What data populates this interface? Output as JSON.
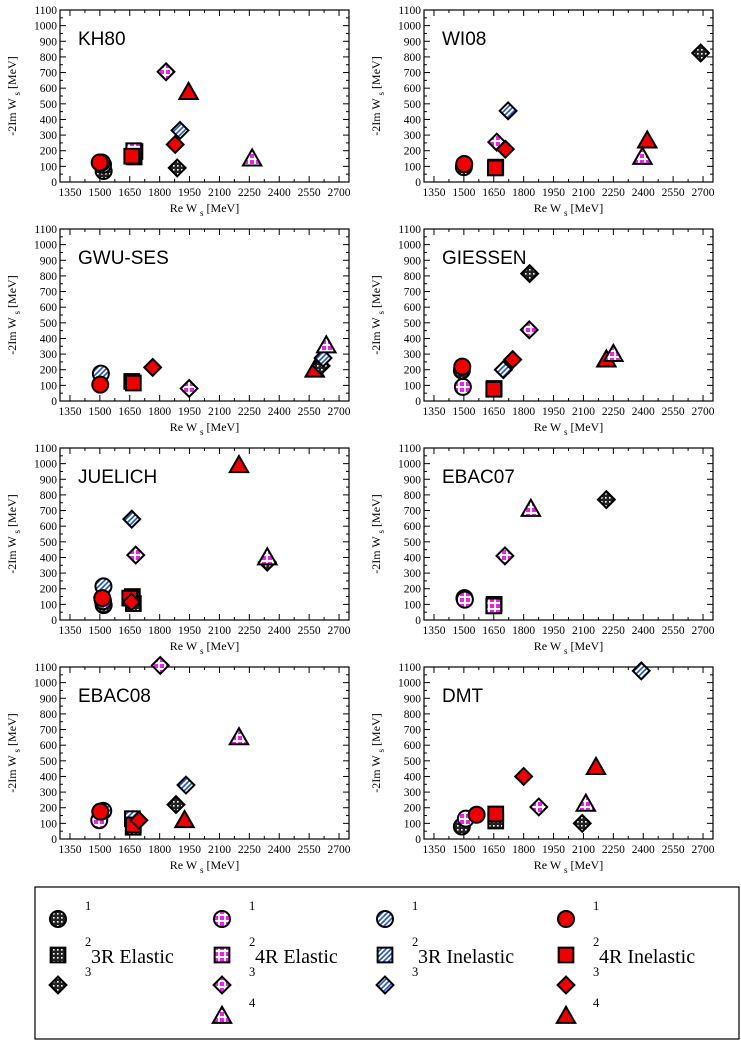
{
  "axes": {
    "xlabel_prefix": "Re W",
    "xlabel_sub": "s",
    "xlabel_suffix": " [MeV]",
    "ylabel_prefix": "-2Im W",
    "ylabel_sub": "s",
    "ylabel_suffix": " [MeV]",
    "xlim": [
      1300,
      2750
    ],
    "ylim": [
      0,
      1100
    ],
    "xticks": [
      1350,
      1500,
      1650,
      1800,
      1950,
      2100,
      2250,
      2400,
      2550,
      2700
    ],
    "yticks": [
      0,
      100,
      200,
      300,
      400,
      500,
      600,
      700,
      800,
      900,
      1000,
      1100
    ]
  },
  "legend": {
    "groups": [
      {
        "name": "3R Elastic",
        "style": "black",
        "numbers": [
          "1",
          "2",
          "3"
        ]
      },
      {
        "name": "4R Elastic",
        "style": "magenta",
        "numbers": [
          "1",
          "2",
          "3",
          "4"
        ]
      },
      {
        "name": "3R Inelastic",
        "style": "blue",
        "numbers": [
          "1",
          "2",
          "3"
        ]
      },
      {
        "name": "4R Inelastic",
        "style": "red",
        "numbers": [
          "1",
          "2",
          "3",
          "4"
        ]
      }
    ]
  },
  "colors": {
    "black": "#222222",
    "magenta": "#ee22ee",
    "blue": "#1e4fd8",
    "red": "#ee0000",
    "edge": "#000000"
  },
  "chart_data": [
    {
      "type": "scatter",
      "title": "KH80",
      "points": [
        {
          "s": "black",
          "m": "circle",
          "x": 1519,
          "y": 70
        },
        {
          "s": "blue",
          "m": "circle",
          "x": 1516,
          "y": 110
        },
        {
          "s": "magenta",
          "m": "circle",
          "x": 1510,
          "y": 125
        },
        {
          "s": "red",
          "m": "circle",
          "x": 1499,
          "y": 125
        },
        {
          "s": "black",
          "m": "square",
          "x": 1672,
          "y": 160
        },
        {
          "s": "blue",
          "m": "square",
          "x": 1676,
          "y": 195
        },
        {
          "s": "magenta",
          "m": "square",
          "x": 1670,
          "y": 200
        },
        {
          "s": "red",
          "m": "square",
          "x": 1660,
          "y": 165
        },
        {
          "s": "magenta",
          "m": "diamond",
          "x": 1832,
          "y": 705
        },
        {
          "s": "red",
          "m": "diamond",
          "x": 1878,
          "y": 240
        },
        {
          "s": "blue",
          "m": "diamond",
          "x": 1902,
          "y": 330
        },
        {
          "s": "black",
          "m": "diamond",
          "x": 1888,
          "y": 90
        },
        {
          "s": "red",
          "m": "triangle",
          "x": 1945,
          "y": 575
        },
        {
          "s": "magenta",
          "m": "triangle",
          "x": 2264,
          "y": 150
        }
      ]
    },
    {
      "type": "scatter",
      "title": "WI08",
      "points": [
        {
          "s": "black",
          "m": "circle",
          "x": 1500,
          "y": 95
        },
        {
          "s": "red",
          "m": "circle",
          "x": 1502,
          "y": 115
        },
        {
          "s": "black",
          "m": "square",
          "x": 1660,
          "y": 95
        },
        {
          "s": "red",
          "m": "square",
          "x": 1658,
          "y": 90
        },
        {
          "s": "magenta",
          "m": "diamond",
          "x": 1665,
          "y": 255
        },
        {
          "s": "red",
          "m": "diamond",
          "x": 1708,
          "y": 210
        },
        {
          "s": "blue",
          "m": "diamond",
          "x": 1722,
          "y": 455
        },
        {
          "s": "black",
          "m": "diamond",
          "x": 2688,
          "y": 825
        },
        {
          "s": "red",
          "m": "triangle",
          "x": 2420,
          "y": 265
        },
        {
          "s": "magenta",
          "m": "triangle",
          "x": 2396,
          "y": 160
        }
      ]
    },
    {
      "type": "scatter",
      "title": "GWU-SES",
      "points": [
        {
          "s": "blue",
          "m": "circle",
          "x": 1505,
          "y": 175
        },
        {
          "s": "red",
          "m": "circle",
          "x": 1502,
          "y": 105
        },
        {
          "s": "blue",
          "m": "square",
          "x": 1660,
          "y": 125
        },
        {
          "s": "red",
          "m": "square",
          "x": 1668,
          "y": 115
        },
        {
          "s": "red",
          "m": "diamond",
          "x": 1765,
          "y": 215
        },
        {
          "s": "magenta",
          "m": "diamond",
          "x": 1948,
          "y": 80
        },
        {
          "s": "red",
          "m": "triangle",
          "x": 2578,
          "y": 200
        },
        {
          "s": "black",
          "m": "diamond",
          "x": 2610,
          "y": 225
        },
        {
          "s": "blue",
          "m": "diamond",
          "x": 2620,
          "y": 275
        },
        {
          "s": "magenta",
          "m": "triangle",
          "x": 2636,
          "y": 355
        }
      ]
    },
    {
      "type": "scatter",
      "title": "GIESSEN",
      "points": [
        {
          "s": "black",
          "m": "circle",
          "x": 1490,
          "y": 195
        },
        {
          "s": "magenta",
          "m": "circle",
          "x": 1495,
          "y": 90
        },
        {
          "s": "red",
          "m": "circle",
          "x": 1492,
          "y": 220
        },
        {
          "s": "black",
          "m": "square",
          "x": 1652,
          "y": 80
        },
        {
          "s": "red",
          "m": "square",
          "x": 1650,
          "y": 75
        },
        {
          "s": "blue",
          "m": "diamond",
          "x": 1698,
          "y": 200
        },
        {
          "s": "red",
          "m": "diamond",
          "x": 1745,
          "y": 265
        },
        {
          "s": "magenta",
          "m": "diamond",
          "x": 1828,
          "y": 455
        },
        {
          "s": "black",
          "m": "diamond",
          "x": 1830,
          "y": 815
        },
        {
          "s": "red",
          "m": "triangle",
          "x": 2215,
          "y": 265
        },
        {
          "s": "magenta",
          "m": "triangle",
          "x": 2250,
          "y": 300
        }
      ]
    },
    {
      "type": "scatter",
      "title": "JUELICH",
      "points": [
        {
          "s": "black",
          "m": "circle",
          "x": 1519,
          "y": 95
        },
        {
          "s": "magenta",
          "m": "circle",
          "x": 1516,
          "y": 120
        },
        {
          "s": "blue",
          "m": "circle",
          "x": 1518,
          "y": 215
        },
        {
          "s": "red",
          "m": "circle",
          "x": 1512,
          "y": 140
        },
        {
          "s": "black",
          "m": "square",
          "x": 1668,
          "y": 105
        },
        {
          "s": "magenta",
          "m": "square",
          "x": 1663,
          "y": 150
        },
        {
          "s": "blue",
          "m": "square",
          "x": 1660,
          "y": 140
        },
        {
          "s": "red",
          "m": "square",
          "x": 1650,
          "y": 140
        },
        {
          "s": "red",
          "m": "diamond",
          "x": 1658,
          "y": 115
        },
        {
          "s": "blue",
          "m": "diamond",
          "x": 1660,
          "y": 645
        },
        {
          "s": "magenta",
          "m": "diamond",
          "x": 1680,
          "y": 415
        },
        {
          "s": "red",
          "m": "triangle",
          "x": 2198,
          "y": 990
        },
        {
          "s": "black",
          "m": "diamond",
          "x": 2340,
          "y": 370
        },
        {
          "s": "magenta",
          "m": "triangle",
          "x": 2340,
          "y": 400
        }
      ]
    },
    {
      "type": "scatter",
      "title": "EBAC07",
      "points": [
        {
          "s": "blue",
          "m": "circle",
          "x": 1503,
          "y": 140
        },
        {
          "s": "magenta",
          "m": "circle",
          "x": 1505,
          "y": 130
        },
        {
          "s": "blue",
          "m": "square",
          "x": 1652,
          "y": 100
        },
        {
          "s": "magenta",
          "m": "square",
          "x": 1650,
          "y": 90
        },
        {
          "s": "magenta",
          "m": "diamond",
          "x": 1706,
          "y": 410
        },
        {
          "s": "magenta",
          "m": "triangle",
          "x": 1836,
          "y": 710
        },
        {
          "s": "black",
          "m": "diamond",
          "x": 2215,
          "y": 770
        }
      ]
    },
    {
      "type": "scatter",
      "title": "EBAC08",
      "points": [
        {
          "s": "magenta",
          "m": "circle",
          "x": 1497,
          "y": 120
        },
        {
          "s": "blue",
          "m": "circle",
          "x": 1517,
          "y": 180
        },
        {
          "s": "red",
          "m": "circle",
          "x": 1502,
          "y": 175
        },
        {
          "s": "blue",
          "m": "square",
          "x": 1663,
          "y": 130
        },
        {
          "s": "black",
          "m": "square",
          "x": 1667,
          "y": 75
        },
        {
          "s": "red",
          "m": "square",
          "x": 1668,
          "y": 90
        },
        {
          "s": "red",
          "m": "diamond",
          "x": 1696,
          "y": 120
        },
        {
          "s": "magenta",
          "m": "diamond",
          "x": 1803,
          "y": 1110
        },
        {
          "s": "black",
          "m": "diamond",
          "x": 1882,
          "y": 220
        },
        {
          "s": "red",
          "m": "triangle",
          "x": 1925,
          "y": 120
        },
        {
          "s": "blue",
          "m": "diamond",
          "x": 1932,
          "y": 345
        },
        {
          "s": "magenta",
          "m": "triangle",
          "x": 2198,
          "y": 650
        }
      ]
    },
    {
      "type": "scatter",
      "title": "DMT",
      "points": [
        {
          "s": "black",
          "m": "circle",
          "x": 1490,
          "y": 80
        },
        {
          "s": "magenta",
          "m": "circle",
          "x": 1510,
          "y": 130
        },
        {
          "s": "red",
          "m": "circle",
          "x": 1564,
          "y": 155
        },
        {
          "s": "black",
          "m": "square",
          "x": 1660,
          "y": 115
        },
        {
          "s": "red",
          "m": "square",
          "x": 1660,
          "y": 160
        },
        {
          "s": "red",
          "m": "diamond",
          "x": 1800,
          "y": 400
        },
        {
          "s": "magenta",
          "m": "diamond",
          "x": 1876,
          "y": 205
        },
        {
          "s": "black",
          "m": "diamond",
          "x": 2094,
          "y": 100
        },
        {
          "s": "magenta",
          "m": "triangle",
          "x": 2112,
          "y": 225
        },
        {
          "s": "red",
          "m": "triangle",
          "x": 2163,
          "y": 460
        },
        {
          "s": "blue",
          "m": "diamond",
          "x": 2390,
          "y": 1075
        }
      ]
    }
  ]
}
